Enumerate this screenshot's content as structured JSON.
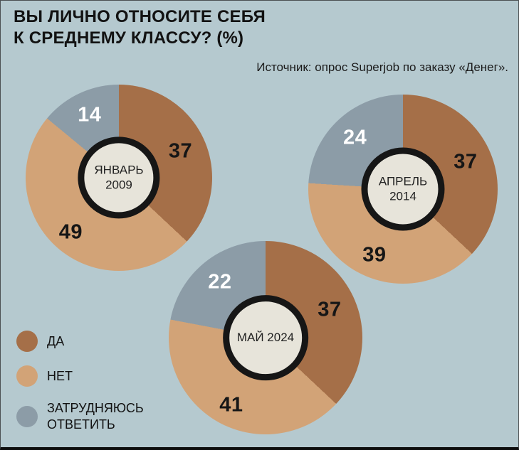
{
  "title": "ВЫ ЛИЧНО ОТНОСИТЕ СЕБЯ\nК СРЕДНЕМУ КЛАССУ? (%)",
  "source": "Источник: опрос Superjob по заказу «Денег».",
  "colors": {
    "yes": "#a56f48",
    "no": "#d2a377",
    "unsure": "#8c9ca7",
    "background": "#b5c9cf",
    "donut_center": "#e7e4da",
    "donut_ring": "#161616",
    "label_dark": "#161616",
    "label_light": "#ffffff"
  },
  "legend": [
    {
      "label": "ДА",
      "color_key": "yes"
    },
    {
      "label": "НЕТ",
      "color_key": "no"
    },
    {
      "label": "ЗАТРУДНЯЮСЬ ОТВЕТИТЬ",
      "color_key": "unsure"
    }
  ],
  "chart_data": {
    "type": "pie",
    "variant": "donut",
    "unit": "%",
    "title": "ВЫ ЛИЧНО ОТНОСИТЕ СЕБЯ К СРЕДНЕМУ КЛАССУ? (%)",
    "categories": [
      "ДА",
      "НЕТ",
      "ЗАТРУДНЯЮСЬ ОТВЕТИТЬ"
    ],
    "start_angle_deg": 0,
    "direction": "clockwise",
    "legend_position": "bottom-left",
    "charts": [
      {
        "period": "ЯНВАРЬ 2009",
        "values": [
          37,
          49,
          14
        ]
      },
      {
        "period": "АПРЕЛЬ 2014",
        "values": [
          37,
          39,
          24
        ]
      },
      {
        "period": "МАЙ 2024",
        "values": [
          37,
          41,
          22
        ]
      }
    ]
  }
}
